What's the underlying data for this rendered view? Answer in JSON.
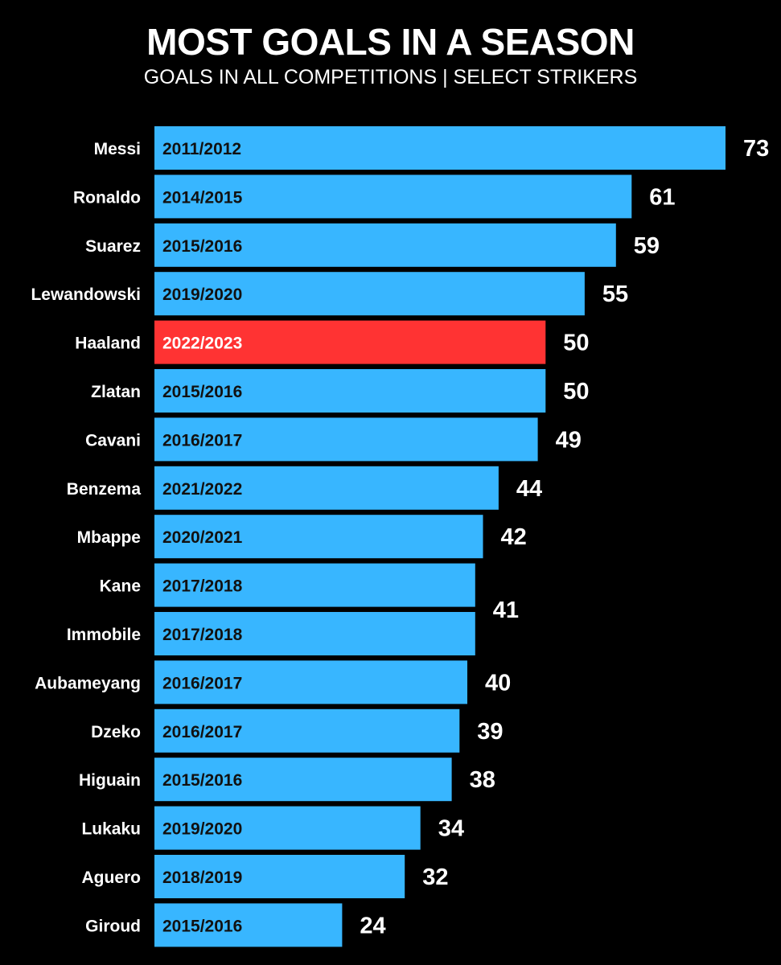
{
  "chart_data": {
    "type": "bar",
    "orientation": "horizontal",
    "title": "MOST GOALS IN A SEASON",
    "subtitle": "GOALS IN ALL COMPETITIONS | SELECT STRIKERS",
    "xlabel": "",
    "ylabel": "",
    "xlim": [
      0,
      73
    ],
    "grid": false,
    "colors": {
      "default": "#38b6ff",
      "highlight": "#ff3333",
      "background": "#000000"
    },
    "rows": [
      {
        "player": "Messi",
        "season": "2011/2012",
        "goals": 73,
        "highlight": false
      },
      {
        "player": "Ronaldo",
        "season": "2014/2015",
        "goals": 61,
        "highlight": false
      },
      {
        "player": "Suarez",
        "season": "2015/2016",
        "goals": 59,
        "highlight": false
      },
      {
        "player": "Lewandowski",
        "season": "2019/2020",
        "goals": 55,
        "highlight": false
      },
      {
        "player": "Haaland",
        "season": "2022/2023",
        "goals": 50,
        "highlight": true
      },
      {
        "player": "Zlatan",
        "season": "2015/2016",
        "goals": 50,
        "highlight": false
      },
      {
        "player": "Cavani",
        "season": "2016/2017",
        "goals": 49,
        "highlight": false
      },
      {
        "player": "Benzema",
        "season": "2021/2022",
        "goals": 44,
        "highlight": false
      },
      {
        "player": "Mbappe",
        "season": "2020/2021",
        "goals": 42,
        "highlight": false
      },
      {
        "player": "Kane",
        "season": "2017/2018",
        "goals": 41,
        "highlight": false
      },
      {
        "player": "Immobile",
        "season": "2017/2018",
        "goals": 41,
        "highlight": false
      },
      {
        "player": "Aubameyang",
        "season": "2016/2017",
        "goals": 40,
        "highlight": false
      },
      {
        "player": "Dzeko",
        "season": "2016/2017",
        "goals": 39,
        "highlight": false
      },
      {
        "player": "Higuain",
        "season": "2015/2016",
        "goals": 38,
        "highlight": false
      },
      {
        "player": "Lukaku",
        "season": "2019/2020",
        "goals": 34,
        "highlight": false
      },
      {
        "player": "Aguero",
        "season": "2018/2019",
        "goals": 32,
        "highlight": false
      },
      {
        "player": "Giroud",
        "season": "2015/2016",
        "goals": 24,
        "highlight": false
      }
    ]
  }
}
